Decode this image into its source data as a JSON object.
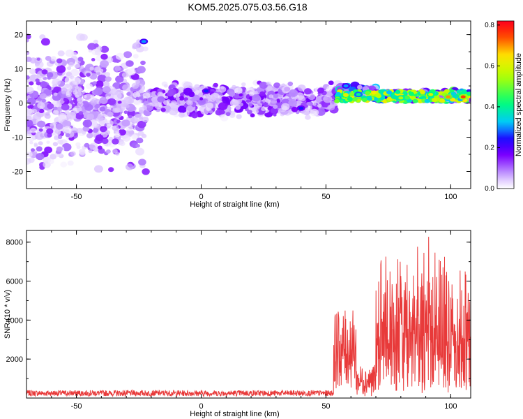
{
  "title": "KOM5.2025.075.03.56.G18",
  "chart_data": [
    {
      "type": "heatmap",
      "xlabel": "Height of straight line (km)",
      "ylabel": "Frequency (Hz)",
      "xlim": [
        -70,
        108
      ],
      "ylim": [
        -25,
        24
      ],
      "xticks": [
        -50,
        0,
        50,
        100
      ],
      "yticks": [
        -20,
        -10,
        0,
        10,
        20
      ],
      "colorbar": {
        "label": "Normalized spectral amplitude",
        "range": [
          0,
          0.82
        ],
        "ticks": [
          0.0,
          0.2,
          0.4,
          0.6,
          0.8
        ],
        "colormap": [
          "#ffffff",
          "#cc99ff",
          "#8000ff",
          "#0000ff",
          "#00ffff",
          "#00ff00",
          "#ffff00",
          "#ff0000"
        ]
      },
      "bands": [
        {
          "x": [
            -70,
            -22
          ],
          "freq_center": 0,
          "freq_spread": 24,
          "amplitude": 0.12,
          "density": "high"
        },
        {
          "x": [
            -22,
            54
          ],
          "freq_center": 1,
          "freq_spread": 6,
          "amplitude": 0.14,
          "density": "medium"
        },
        {
          "x": [
            54,
            70
          ],
          "freq_center": 3,
          "freq_spread": 3,
          "amplitude": 0.3,
          "density": "high"
        },
        {
          "x": [
            70,
            108
          ],
          "freq_center": 2,
          "freq_spread": 2,
          "amplitude": 0.45,
          "density": "high"
        }
      ],
      "peaks": [
        {
          "x": -23,
          "freq": 18,
          "amplitude": 0.3
        },
        {
          "x": 2,
          "freq": 3.5,
          "amplitude": 0.25
        },
        {
          "x": 40,
          "freq": -1.5,
          "amplitude": 0.25
        },
        {
          "x": 58,
          "freq": 5,
          "amplitude": 0.3
        },
        {
          "x": 63,
          "freq": 2.5,
          "amplitude": 0.4
        },
        {
          "x": 80,
          "freq": 1.5,
          "amplitude": 0.55
        },
        {
          "x": 92,
          "freq": 2.5,
          "amplitude": 0.6
        },
        {
          "x": 99,
          "freq": 1.8,
          "amplitude": 0.7
        },
        {
          "x": 105,
          "freq": 1.8,
          "amplitude": 0.75
        }
      ]
    },
    {
      "type": "line",
      "xlabel": "Height of straight line (km)",
      "ylabel": "SNR (10 * v/v)",
      "xlim": [
        -70,
        108
      ],
      "ylim": [
        0,
        8600
      ],
      "xticks": [
        -50,
        0,
        50,
        100
      ],
      "yticks": [
        2000,
        4000,
        6000,
        8000
      ],
      "color": "#e83a3a",
      "segments": [
        {
          "x": [
            -70,
            53
          ],
          "baseline": 250,
          "noise": 150
        },
        {
          "x": [
            53,
            62
          ],
          "baseline": 2500,
          "noise": 2000
        },
        {
          "x": [
            62,
            70
          ],
          "baseline": 900,
          "noise": 800
        },
        {
          "x": [
            70,
            108
          ],
          "baseline": 3000,
          "noise": 2600
        }
      ],
      "max_value": 8500
    }
  ]
}
